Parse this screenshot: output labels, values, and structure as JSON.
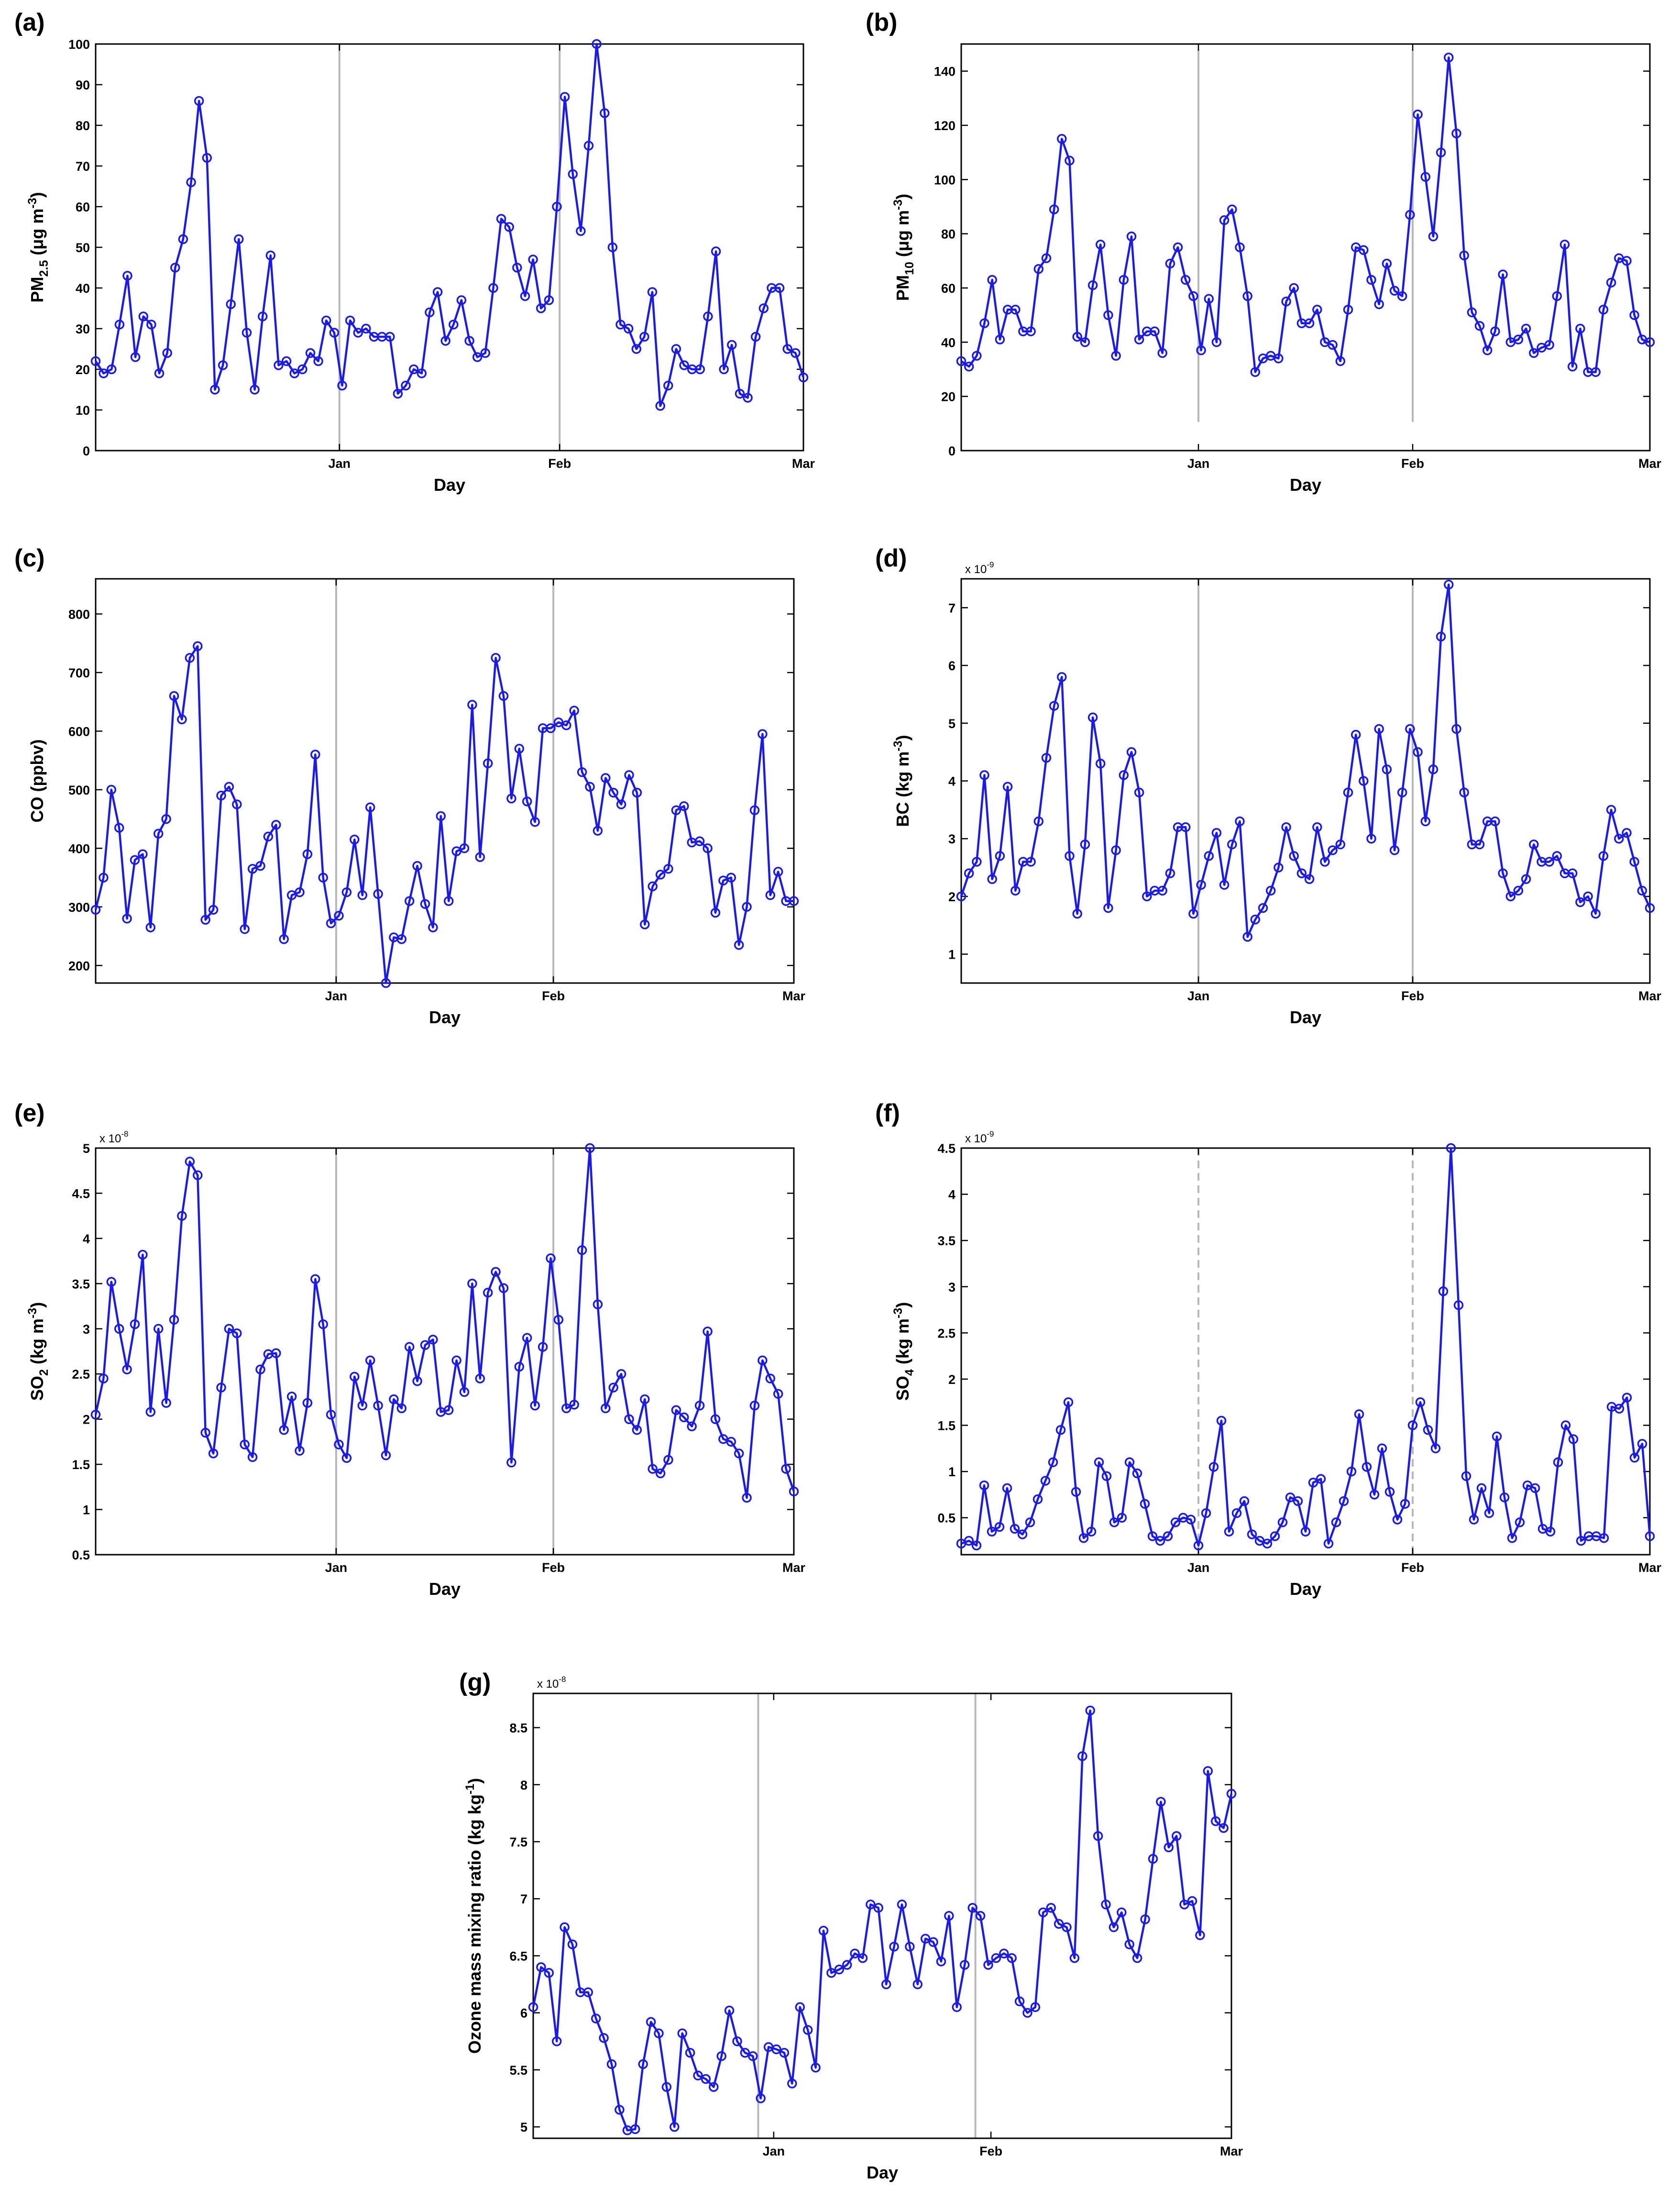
{
  "figure": {
    "background": "#ffffff",
    "line_color": "#1a1af0",
    "marker_color": "#1a1af0",
    "vline_color": "#b8b8b8"
  },
  "chart_data": [
    {
      "id": "a",
      "type": "line",
      "panel_label": "(a)",
      "ylabel": {
        "main": "PM",
        "sub": "2.5",
        "rest": " (μg m",
        "sup": "-3",
        "end": ")"
      },
      "xlabel": "Day",
      "xlim": [
        0,
        90
      ],
      "ylim": [
        0,
        100
      ],
      "yticks": [
        0,
        10,
        20,
        30,
        40,
        50,
        60,
        70,
        80,
        90,
        100
      ],
      "ytick_labels": [
        "0",
        "10",
        "20",
        "30",
        "40",
        "50",
        "60",
        "70",
        "80",
        "90",
        "100"
      ],
      "xticks": [
        {
          "day": 31,
          "label": "Jan"
        },
        {
          "day": 59,
          "label": "Feb"
        },
        {
          "day": 90,
          "label": "Mar"
        }
      ],
      "vlines": [
        31,
        59
      ],
      "vline_style": "solid",
      "exponent": null,
      "values": [
        22,
        19,
        20,
        31,
        43,
        23,
        33,
        31,
        19,
        24,
        45,
        52,
        66,
        86,
        72,
        15,
        21,
        36,
        52,
        29,
        15,
        33,
        48,
        21,
        22,
        19,
        20,
        24,
        22,
        32,
        29,
        16,
        32,
        29,
        30,
        28,
        28,
        28,
        14,
        16,
        20,
        19,
        34,
        39,
        27,
        31,
        37,
        27,
        23,
        24,
        40,
        57,
        55,
        45,
        38,
        47,
        35,
        37,
        60,
        87,
        68,
        54,
        75,
        100,
        83,
        50,
        31,
        30,
        25,
        28,
        39,
        11,
        16,
        25,
        21,
        20,
        20,
        33,
        49,
        20,
        26,
        14,
        13,
        28,
        35,
        40,
        40,
        25,
        24,
        18
      ]
    },
    {
      "id": "b",
      "type": "line",
      "panel_label": "(b)",
      "ylabel": {
        "main": "PM",
        "sub": "10",
        "rest": " (μg m",
        "sup": "-3",
        "end": ")"
      },
      "xlabel": "Day",
      "xlim": [
        0,
        90
      ],
      "ylim": [
        0,
        150
      ],
      "yticks": [
        0,
        20,
        40,
        60,
        80,
        100,
        120,
        140
      ],
      "ytick_labels": [
        "0",
        "20",
        "40",
        "60",
        "80",
        "100",
        "120",
        "140"
      ],
      "xticks": [
        {
          "day": 31,
          "label": "Jan"
        },
        {
          "day": 59,
          "label": "Feb"
        },
        {
          "day": 90,
          "label": "Mar"
        }
      ],
      "vlines": [
        31,
        59
      ],
      "vline_style": "solid",
      "exponent": null,
      "values": [
        33,
        31,
        35,
        47,
        63,
        41,
        52,
        52,
        44,
        44,
        67,
        71,
        89,
        115,
        107,
        42,
        40,
        61,
        76,
        50,
        35,
        63,
        79,
        41,
        44,
        44,
        36,
        69,
        75,
        63,
        57,
        37,
        56,
        40,
        85,
        89,
        75,
        57,
        29,
        34,
        35,
        34,
        55,
        60,
        47,
        47,
        52,
        40,
        39,
        33,
        52,
        75,
        74,
        63,
        54,
        69,
        59,
        57,
        87,
        124,
        101,
        79,
        110,
        145,
        117,
        72,
        51,
        46,
        37,
        44,
        65,
        40,
        41,
        45,
        36,
        38,
        39,
        57,
        76,
        31,
        45,
        29,
        29,
        52,
        62,
        71,
        70,
        50,
        41,
        40
      ]
    },
    {
      "id": "c",
      "type": "line",
      "panel_label": "(c)",
      "ylabel": {
        "main": "CO (ppbv)",
        "sub": "",
        "rest": "",
        "sup": "",
        "end": ""
      },
      "xlabel": "Day",
      "xlim": [
        0,
        90
      ],
      "ylim": [
        170,
        860
      ],
      "yticks": [
        200,
        300,
        400,
        500,
        600,
        700,
        800
      ],
      "ytick_labels": [
        "200",
        "300",
        "400",
        "500",
        "600",
        "700",
        "800"
      ],
      "xticks": [
        {
          "day": 31,
          "label": "Jan"
        },
        {
          "day": 59,
          "label": "Feb"
        },
        {
          "day": 90,
          "label": "Mar"
        }
      ],
      "vlines": [
        31,
        59
      ],
      "vline_style": "solid",
      "exponent": null,
      "values": [
        295,
        350,
        500,
        435,
        280,
        380,
        390,
        265,
        425,
        450,
        660,
        620,
        725,
        745,
        278,
        295,
        490,
        505,
        475,
        262,
        365,
        370,
        420,
        440,
        245,
        320,
        325,
        390,
        560,
        350,
        272,
        285,
        325,
        415,
        320,
        470,
        322,
        170,
        248,
        245,
        310,
        370,
        305,
        265,
        455,
        310,
        395,
        400,
        645,
        385,
        545,
        725,
        660,
        485,
        570,
        480,
        445,
        605,
        605,
        615,
        610,
        635,
        530,
        505,
        430,
        520,
        495,
        475,
        525,
        495,
        270,
        335,
        355,
        365,
        465,
        472,
        410,
        412,
        400,
        290,
        345,
        350,
        235,
        300,
        465,
        595,
        320,
        360,
        310,
        310
      ]
    },
    {
      "id": "d",
      "type": "line",
      "panel_label": "(d)",
      "ylabel": {
        "main": "BC (kg m",
        "sub": "",
        "rest": "",
        "sup": "-3",
        "end": ")"
      },
      "xlabel": "Day",
      "xlim": [
        0,
        90
      ],
      "ylim": [
        0.5,
        7.5
      ],
      "yticks": [
        1,
        2,
        3,
        4,
        5,
        6,
        7
      ],
      "ytick_labels": [
        "1",
        "2",
        "3",
        "4",
        "5",
        "6",
        "7"
      ],
      "xticks": [
        {
          "day": 31,
          "label": "Jan"
        },
        {
          "day": 59,
          "label": "Feb"
        },
        {
          "day": 90,
          "label": "Mar"
        }
      ],
      "vlines": [
        31,
        59
      ],
      "vline_style": "solid",
      "exponent": {
        "base": "x 10",
        "power": "-9"
      },
      "values": [
        2.0,
        2.4,
        2.6,
        4.1,
        2.3,
        2.7,
        3.9,
        2.1,
        2.6,
        2.6,
        3.3,
        4.4,
        5.3,
        5.8,
        2.7,
        1.7,
        2.9,
        5.1,
        4.3,
        1.8,
        2.8,
        4.1,
        4.5,
        3.8,
        2.0,
        2.1,
        2.1,
        2.4,
        3.2,
        3.2,
        1.7,
        2.2,
        2.7,
        3.1,
        2.2,
        2.9,
        3.3,
        1.3,
        1.6,
        1.8,
        2.1,
        2.5,
        3.2,
        2.7,
        2.4,
        2.3,
        3.2,
        2.6,
        2.8,
        2.9,
        3.8,
        4.8,
        4.0,
        3.0,
        4.9,
        4.2,
        2.8,
        3.8,
        4.9,
        4.5,
        3.3,
        4.2,
        6.5,
        7.4,
        4.9,
        3.8,
        2.9,
        2.9,
        3.3,
        3.3,
        2.4,
        2.0,
        2.1,
        2.3,
        2.9,
        2.6,
        2.6,
        2.7,
        2.4,
        2.4,
        1.9,
        2.0,
        1.7,
        2.7,
        3.5,
        3.0,
        3.1,
        2.6,
        2.1,
        1.8
      ]
    },
    {
      "id": "e",
      "type": "line",
      "panel_label": "(e)",
      "ylabel": {
        "main": "SO",
        "sub": "2",
        "rest": " (kg m",
        "sup": "-3",
        "end": ")"
      },
      "xlabel": "Day",
      "xlim": [
        0,
        90
      ],
      "ylim": [
        0.5,
        5
      ],
      "yticks": [
        0.5,
        1,
        1.5,
        2,
        2.5,
        3,
        3.5,
        4,
        4.5,
        5
      ],
      "ytick_labels": [
        "0.5",
        "1",
        "1.5",
        "2",
        "2.5",
        "3",
        "3.5",
        "4",
        "4.5",
        "5"
      ],
      "xticks": [
        {
          "day": 31,
          "label": "Jan"
        },
        {
          "day": 59,
          "label": "Feb"
        },
        {
          "day": 90,
          "label": "Mar"
        }
      ],
      "vlines": [
        31,
        59
      ],
      "vline_style": "solid",
      "exponent": {
        "base": "x 10",
        "power": "-8"
      },
      "values": [
        2.05,
        2.45,
        3.52,
        3.0,
        2.55,
        3.05,
        3.82,
        2.08,
        3.0,
        2.18,
        3.1,
        4.25,
        4.85,
        4.7,
        1.85,
        1.62,
        2.35,
        3.0,
        2.95,
        1.72,
        1.58,
        2.55,
        2.72,
        2.73,
        1.88,
        2.25,
        1.65,
        2.18,
        3.55,
        3.05,
        2.05,
        1.72,
        1.57,
        2.47,
        2.15,
        2.65,
        2.15,
        1.6,
        2.22,
        2.12,
        2.8,
        2.42,
        2.82,
        2.88,
        2.08,
        2.1,
        2.65,
        2.3,
        3.5,
        2.45,
        3.4,
        3.63,
        3.45,
        1.52,
        2.58,
        2.9,
        2.15,
        2.8,
        3.78,
        3.1,
        2.12,
        2.16,
        3.87,
        5.0,
        3.27,
        2.12,
        2.35,
        2.5,
        2.0,
        1.88,
        2.22,
        1.45,
        1.4,
        1.55,
        2.1,
        2.02,
        1.92,
        2.15,
        2.97,
        2.0,
        1.78,
        1.75,
        1.62,
        1.13,
        2.15,
        2.65,
        2.45,
        2.28,
        1.45,
        1.2
      ]
    },
    {
      "id": "f",
      "type": "line",
      "panel_label": "(f)",
      "ylabel": {
        "main": "SO",
        "sub": "4",
        "rest": " (kg m",
        "sup": "-3",
        "end": ")"
      },
      "xlabel": "Day",
      "xlim": [
        0,
        90
      ],
      "ylim": [
        0.1,
        4.5
      ],
      "yticks": [
        0.5,
        1,
        1.5,
        2,
        2.5,
        3,
        3.5,
        4,
        4.5
      ],
      "ytick_labels": [
        "0.5",
        "1",
        "1.5",
        "2",
        "2.5",
        "3",
        "3.5",
        "4",
        "4.5"
      ],
      "xticks": [
        {
          "day": 31,
          "label": "Jan"
        },
        {
          "day": 59,
          "label": "Feb"
        },
        {
          "day": 90,
          "label": "Mar"
        }
      ],
      "vlines": [
        31,
        59
      ],
      "vline_style": "dashed",
      "exponent": {
        "base": "x 10",
        "power": "-9"
      },
      "values": [
        0.22,
        0.25,
        0.2,
        0.85,
        0.35,
        0.4,
        0.82,
        0.38,
        0.32,
        0.45,
        0.7,
        0.9,
        1.1,
        1.45,
        1.75,
        0.78,
        0.28,
        0.35,
        1.1,
        0.95,
        0.45,
        0.5,
        1.1,
        0.98,
        0.65,
        0.3,
        0.25,
        0.3,
        0.45,
        0.5,
        0.48,
        0.2,
        0.55,
        1.05,
        1.55,
        0.35,
        0.55,
        0.68,
        0.32,
        0.25,
        0.22,
        0.3,
        0.45,
        0.72,
        0.68,
        0.35,
        0.88,
        0.92,
        0.22,
        0.45,
        0.68,
        1.0,
        1.62,
        1.05,
        0.75,
        1.25,
        0.78,
        0.48,
        0.65,
        1.5,
        1.75,
        1.45,
        1.25,
        2.95,
        4.5,
        2.8,
        0.95,
        0.48,
        0.82,
        0.55,
        1.38,
        0.72,
        0.28,
        0.45,
        0.85,
        0.82,
        0.38,
        0.35,
        1.1,
        1.5,
        1.35,
        0.25,
        0.3,
        0.3,
        0.28,
        1.7,
        1.68,
        1.8,
        1.15,
        1.3,
        0.3
      ]
    },
    {
      "id": "g",
      "type": "line",
      "panel_label": "(g)",
      "ylabel": {
        "main": "Ozone mass mixing ratio (kg kg",
        "sub": "",
        "rest": "",
        "sup": "-1",
        "end": ")"
      },
      "xlabel": "Day",
      "xlim": [
        0,
        90
      ],
      "ylim": [
        4.9,
        8.8
      ],
      "yticks": [
        5,
        5.5,
        6,
        6.5,
        7,
        7.5,
        8,
        8.5
      ],
      "ytick_labels": [
        "5",
        "5.5",
        "6",
        "6.5",
        "7",
        "7.5",
        "8",
        "8.5"
      ],
      "xticks": [
        {
          "day": 31,
          "label": "Jan"
        },
        {
          "day": 59,
          "label": "Feb"
        },
        {
          "day": 90,
          "label": "Mar"
        }
      ],
      "vlines": [
        29,
        57
      ],
      "vline_style": "solid",
      "exponent": {
        "base": "x 10",
        "power": "-8"
      },
      "values": [
        6.05,
        6.4,
        6.35,
        5.75,
        6.75,
        6.6,
        6.18,
        6.18,
        5.95,
        5.78,
        5.55,
        5.15,
        4.97,
        4.98,
        5.55,
        5.92,
        5.82,
        5.35,
        5.0,
        5.82,
        5.65,
        5.45,
        5.42,
        5.35,
        5.62,
        6.02,
        5.75,
        5.65,
        5.62,
        5.25,
        5.7,
        5.68,
        5.65,
        5.38,
        6.05,
        5.85,
        5.52,
        6.72,
        6.35,
        6.38,
        6.42,
        6.52,
        6.48,
        6.95,
        6.92,
        6.25,
        6.58,
        6.95,
        6.58,
        6.25,
        6.65,
        6.62,
        6.45,
        6.85,
        6.05,
        6.42,
        6.92,
        6.85,
        6.42,
        6.48,
        6.52,
        6.48,
        6.1,
        6.0,
        6.05,
        6.88,
        6.92,
        6.78,
        6.75,
        6.48,
        8.25,
        8.65,
        7.55,
        6.95,
        6.75,
        6.88,
        6.6,
        6.48,
        6.82,
        7.35,
        7.85,
        7.45,
        7.55,
        6.95,
        6.98,
        6.68,
        8.12,
        7.68,
        7.62,
        7.92
      ]
    }
  ]
}
